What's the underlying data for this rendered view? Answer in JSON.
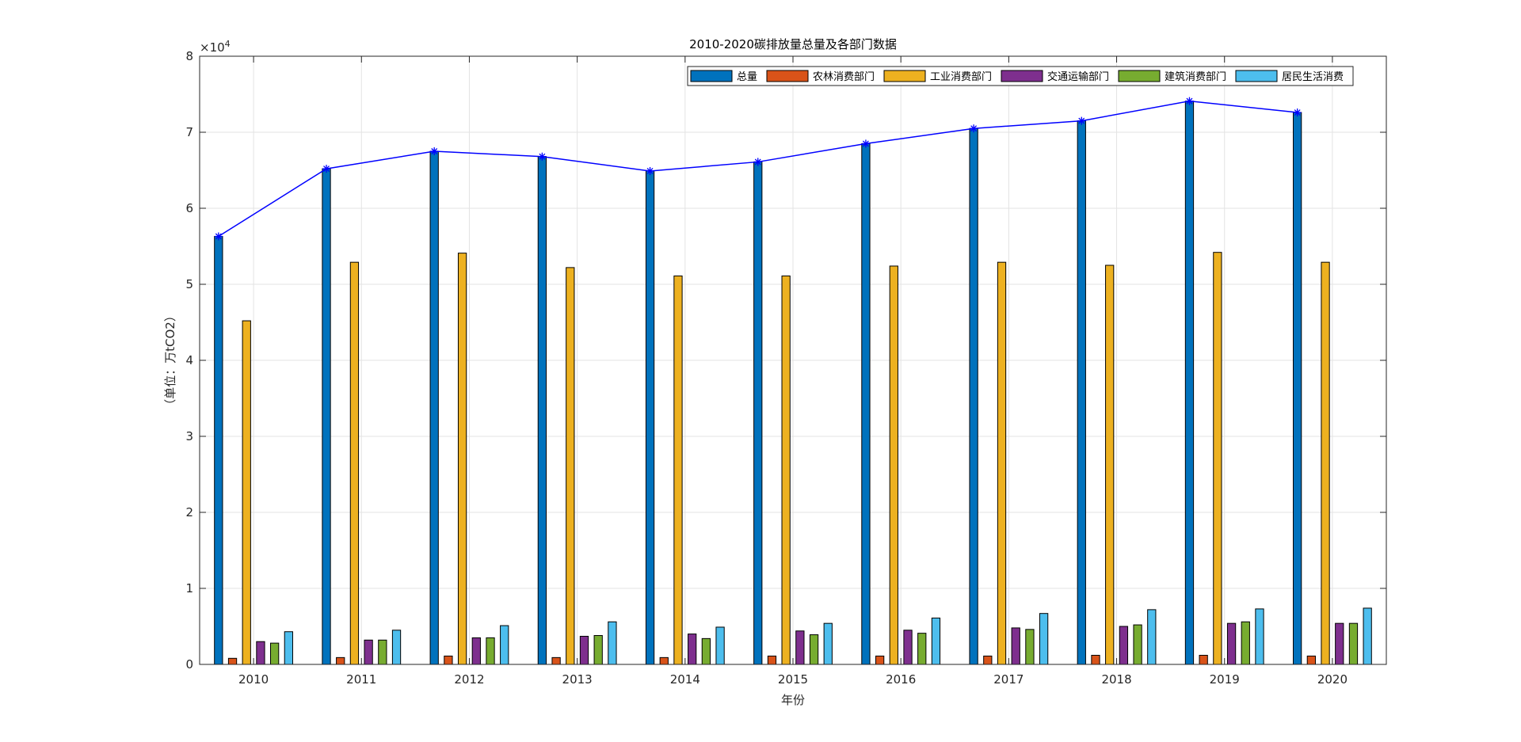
{
  "chart_data": {
    "type": "bar",
    "title": "2010-2020碳排放量总量及各部门数据",
    "xlabel": "年份",
    "ylabel": "（单位：万tCO2）",
    "y_exponent_label": "×10",
    "y_exponent_power": "4",
    "ylim": [
      0,
      80000
    ],
    "yticks": [
      0,
      10000,
      20000,
      30000,
      40000,
      50000,
      60000,
      70000,
      80000
    ],
    "ytick_labels": [
      "0",
      "1",
      "2",
      "3",
      "4",
      "5",
      "6",
      "7",
      "8"
    ],
    "grid": true,
    "legend_position": "top-right",
    "categories": [
      "2010",
      "2011",
      "2012",
      "2013",
      "2014",
      "2015",
      "2016",
      "2017",
      "2018",
      "2019",
      "2020"
    ],
    "series": [
      {
        "name": "总量",
        "color": "#0072BD",
        "values": [
          56300,
          65200,
          67500,
          66800,
          64900,
          66100,
          68500,
          70500,
          71500,
          74100,
          72600
        ]
      },
      {
        "name": "农林消费部门",
        "color": "#D95319",
        "values": [
          800,
          900,
          1100,
          900,
          900,
          1100,
          1100,
          1100,
          1200,
          1200,
          1100
        ]
      },
      {
        "name": "工业消费部门",
        "color": "#EDB120",
        "values": [
          45200,
          52900,
          54100,
          52200,
          51100,
          51100,
          52400,
          52900,
          52500,
          54200,
          52900
        ]
      },
      {
        "name": "交通运输部门",
        "color": "#7E2F8E",
        "values": [
          3000,
          3200,
          3500,
          3700,
          4000,
          4400,
          4500,
          4800,
          5000,
          5400,
          5400
        ]
      },
      {
        "name": "建筑消费部门",
        "color": "#77AC30",
        "values": [
          2800,
          3200,
          3500,
          3800,
          3400,
          3900,
          4100,
          4600,
          5200,
          5600,
          5400
        ]
      },
      {
        "name": "居民生活消费",
        "color": "#4DBEEE",
        "values": [
          4300,
          4500,
          5100,
          5600,
          4900,
          5400,
          6100,
          6700,
          7200,
          7300,
          7400
        ]
      }
    ],
    "line": {
      "values": [
        56300,
        65200,
        67500,
        66800,
        64900,
        66100,
        68500,
        70500,
        71500,
        74100,
        72600
      ],
      "color": "#0000FF",
      "marker": "*"
    }
  }
}
